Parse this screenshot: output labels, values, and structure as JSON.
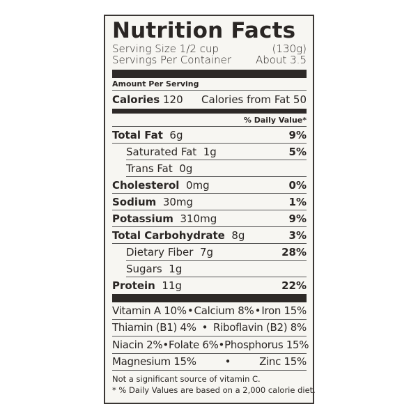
{
  "title": "Nutrition Facts",
  "serving_size": {
    "label": "Serving Size 1/2 cup",
    "value": "(130g)"
  },
  "servings_per_container": {
    "label": "Servings Per Container",
    "value": "About 3.5"
  },
  "amount_per_serving": "Amount Per Serving",
  "calories": {
    "label": "Calories",
    "value": "120",
    "from_fat": "Calories from Fat 50"
  },
  "daily_value_header": "% Daily Value*",
  "nutrients": [
    {
      "label": "Total Fat",
      "amount": "6g",
      "dv": "9%",
      "bold": true,
      "indent": false
    },
    {
      "label": "Saturated Fat",
      "amount": "1g",
      "dv": "5%",
      "bold": false,
      "indent": true
    },
    {
      "label": "Trans Fat",
      "amount": "0g",
      "dv": "",
      "bold": false,
      "indent": true
    },
    {
      "label": "Cholesterol",
      "amount": "0mg",
      "dv": "0%",
      "bold": true,
      "indent": false
    },
    {
      "label": "Sodium",
      "amount": "30mg",
      "dv": "1%",
      "bold": true,
      "indent": false
    },
    {
      "label": "Potassium",
      "amount": "310mg",
      "dv": "9%",
      "bold": true,
      "indent": false
    },
    {
      "label": "Total Carbohydrate",
      "amount": "8g",
      "dv": "3%",
      "bold": true,
      "indent": false
    },
    {
      "label": "Dietary Fiber",
      "amount": "7g",
      "dv": "28%",
      "bold": false,
      "indent": true
    },
    {
      "label": "Sugars",
      "amount": "1g",
      "dv": "",
      "bold": false,
      "indent": true
    },
    {
      "label": "Protein",
      "amount": "11g",
      "dv": "22%",
      "bold": true,
      "indent": false
    }
  ],
  "vitamins": [
    [
      "Vitamin A 10%",
      "•",
      "Calcium 8%",
      "•",
      "Iron 15%"
    ],
    [
      "Thiamin (B1) 4%",
      "•",
      "Riboflavin (B2) 8%"
    ],
    [
      "Niacin 2%",
      "•",
      "Folate 6%",
      "•",
      "Phosphorus 15%"
    ],
    [
      "Magnesium 15%",
      "•",
      "Zinc 15%"
    ]
  ],
  "footnotes": [
    "Not a significant source of vitamin C.",
    "* % Daily Values are based on a 2,000 calorie diet."
  ]
}
